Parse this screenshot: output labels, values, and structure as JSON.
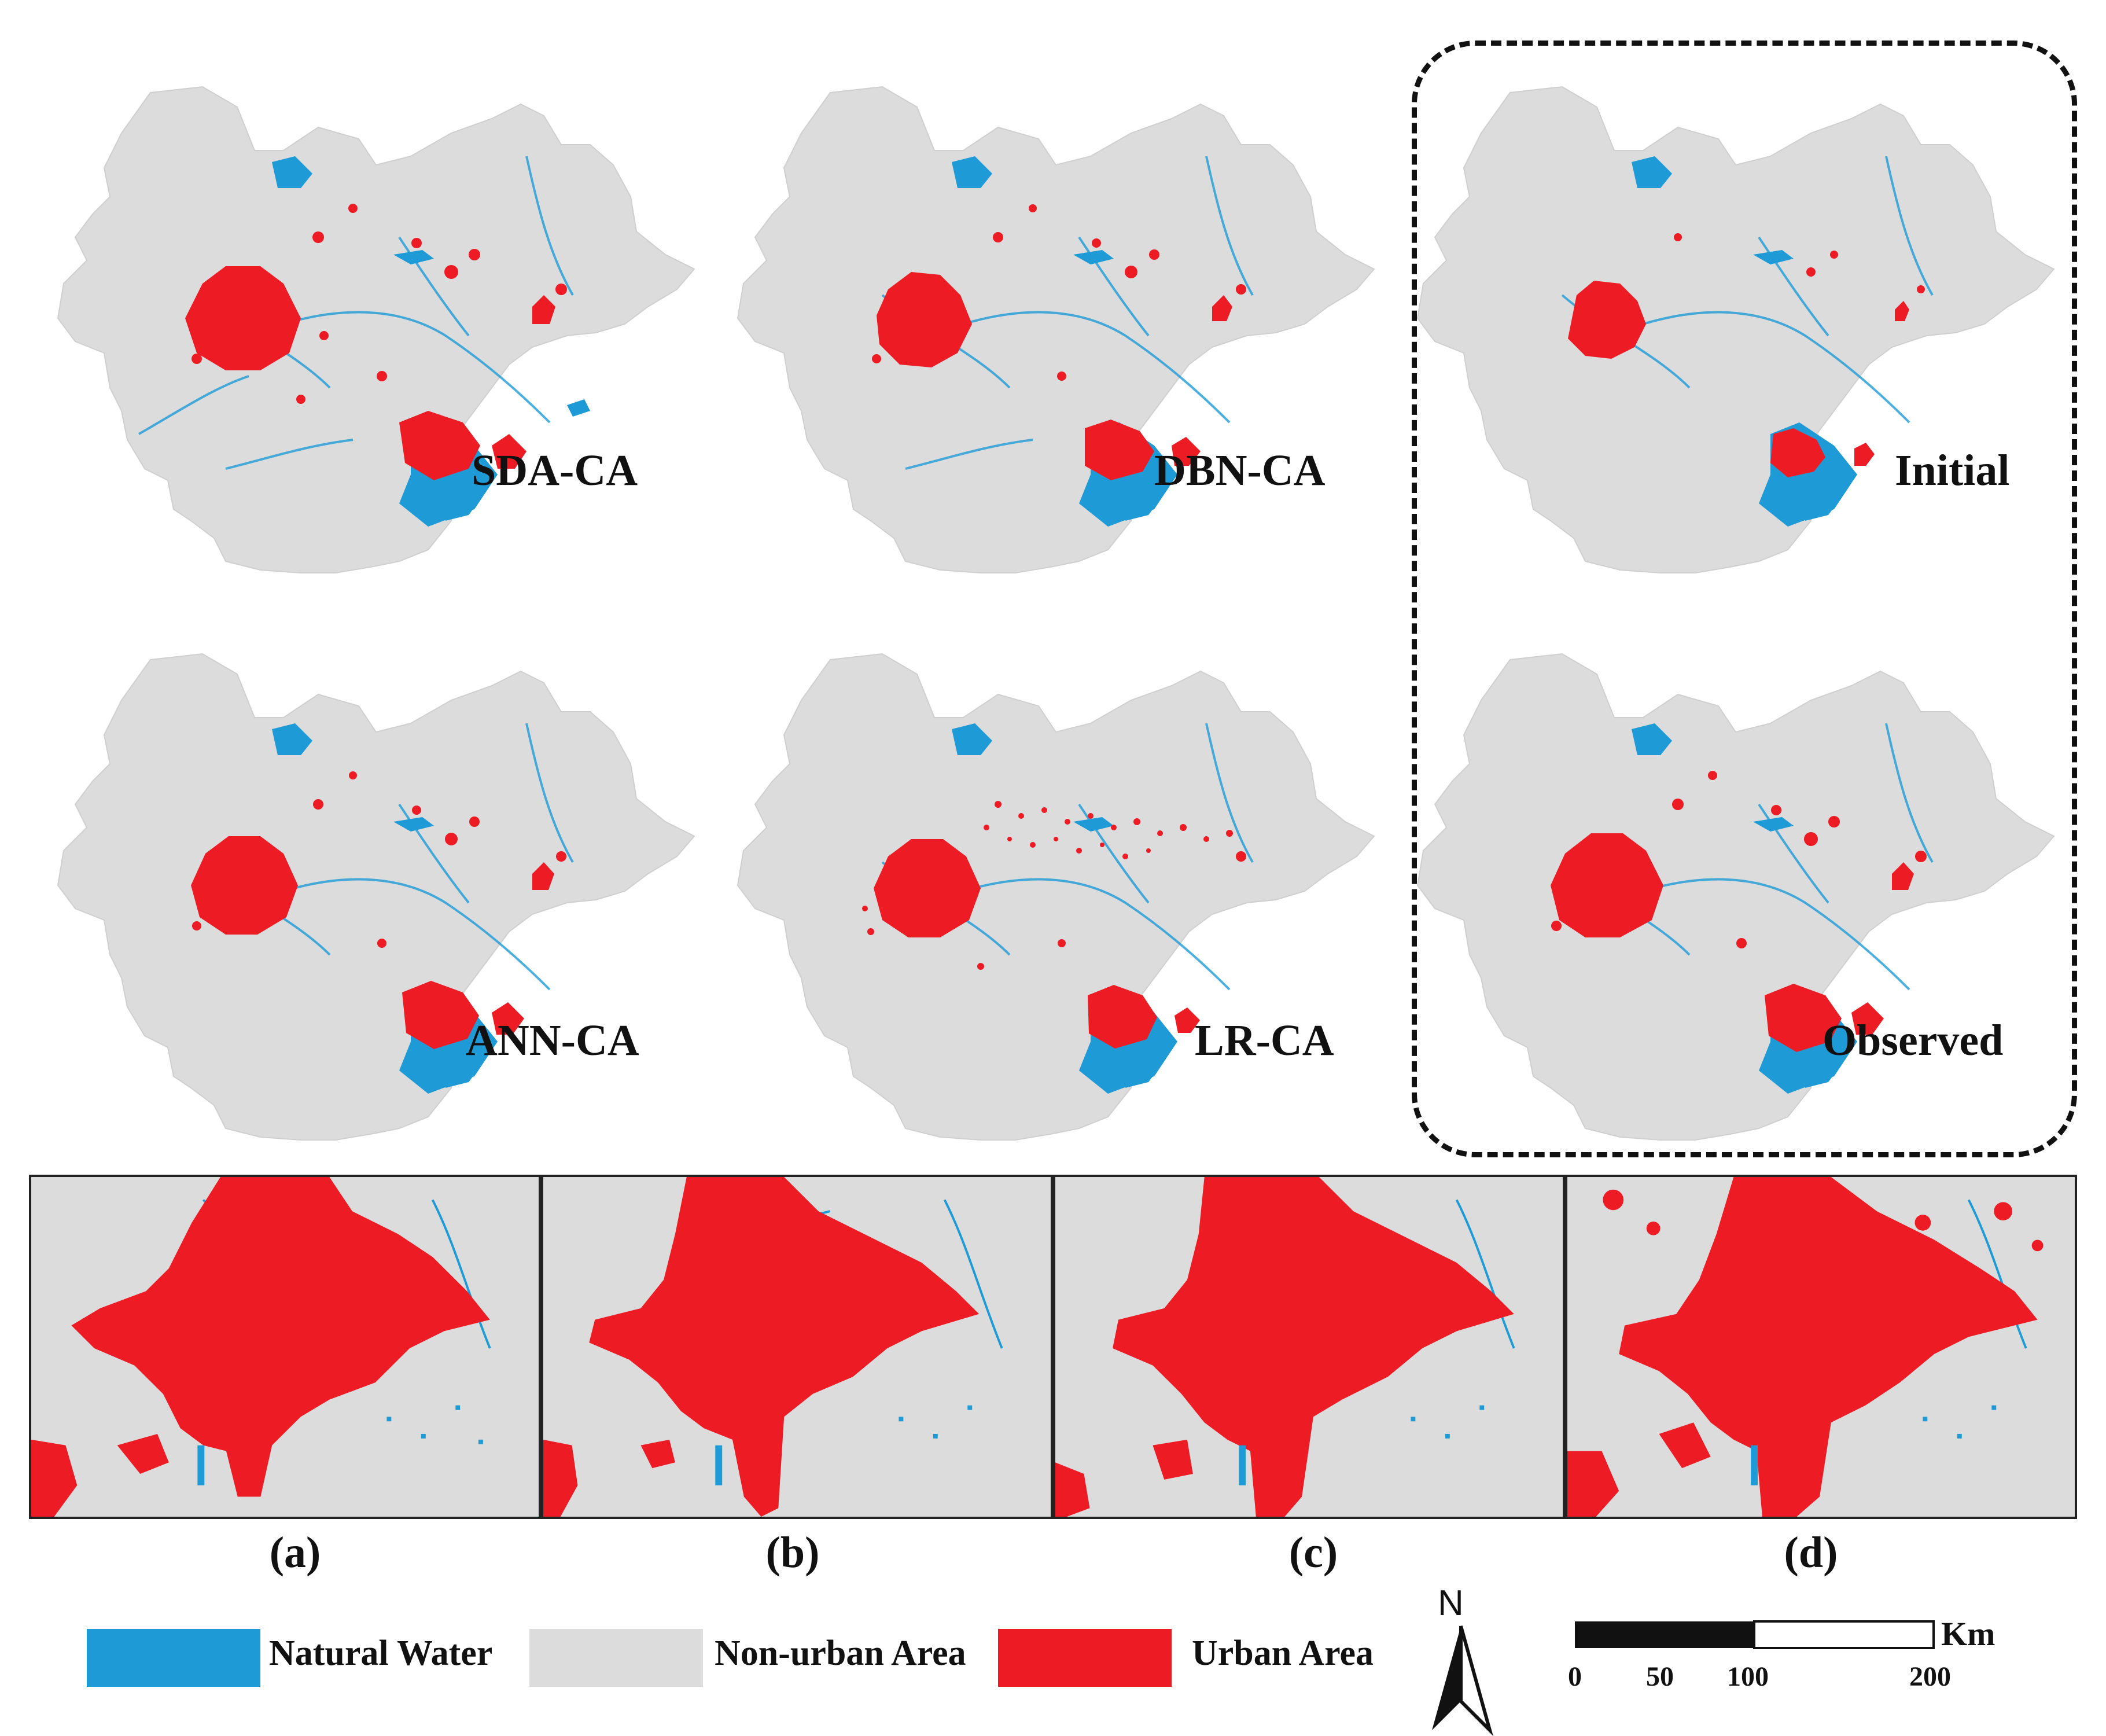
{
  "panels": {
    "sda": {
      "label": "SDA-CA"
    },
    "dbn": {
      "label": "DBN-CA"
    },
    "initial": {
      "label": "Initial"
    },
    "ann": {
      "label": "ANN-CA"
    },
    "lr": {
      "label": "LR-CA"
    },
    "observed": {
      "label": "Observed"
    }
  },
  "zoom_captions": [
    "(a)",
    "(b)",
    "(c)",
    "(d)"
  ],
  "legend": {
    "water": {
      "label": "Natural Water",
      "color": "#1e9bd7"
    },
    "nonurban": {
      "label": "Non-urban Area",
      "color": "#dcdcdc"
    },
    "urban": {
      "label": "Urban Area",
      "color": "#ed1c24"
    }
  },
  "north_arrow": {
    "letter": "N"
  },
  "scale": {
    "unit": "Km",
    "ticks": [
      "0",
      "50",
      "100",
      "200"
    ]
  }
}
